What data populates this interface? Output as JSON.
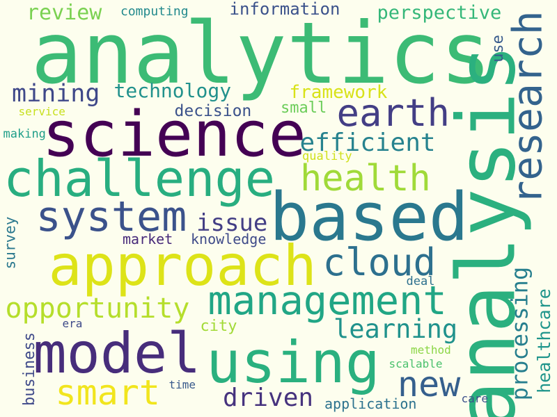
{
  "background": "#fdfeee",
  "words": [
    {
      "text": "analytics",
      "color": "#3cbb75",
      "rotation": 0
    },
    {
      "text": "analysis",
      "color": "#2bb07f",
      "rotation": -90
    },
    {
      "text": "based",
      "color": "#2a788e",
      "rotation": 0
    },
    {
      "text": "science",
      "color": "#440154",
      "rotation": 0
    },
    {
      "text": "challenge",
      "color": "#28ae80",
      "rotation": 0
    },
    {
      "text": "approach",
      "color": "#dde318",
      "rotation": 0
    },
    {
      "text": "using",
      "color": "#2ab07f",
      "rotation": 0
    },
    {
      "text": "model",
      "color": "#472d7b",
      "rotation": 0
    },
    {
      "text": "management",
      "color": "#21a685",
      "rotation": 0
    },
    {
      "text": "research",
      "color": "#33638d",
      "rotation": -90
    },
    {
      "text": "system",
      "color": "#3b528b",
      "rotation": 0
    },
    {
      "text": "earth",
      "color": "#433e85",
      "rotation": 0
    },
    {
      "text": "health",
      "color": "#a0da39",
      "rotation": 0
    },
    {
      "text": "cloud",
      "color": "#2d708e",
      "rotation": 0
    },
    {
      "text": "smart",
      "color": "#f1e51d",
      "rotation": 0
    },
    {
      "text": "new",
      "color": "#355f8d",
      "rotation": 0
    },
    {
      "text": "opportunity",
      "color": "#b5de2b",
      "rotation": 0
    },
    {
      "text": "learning",
      "color": "#20928c",
      "rotation": 0
    },
    {
      "text": "driven",
      "color": "#46337e",
      "rotation": 0
    },
    {
      "text": "mining",
      "color": "#3f4889",
      "rotation": 0
    },
    {
      "text": "efficient",
      "color": "#26828e",
      "rotation": 0
    },
    {
      "text": "issue",
      "color": "#433e85",
      "rotation": 0
    },
    {
      "text": "processing",
      "color": "#277f8e",
      "rotation": -90
    },
    {
      "text": "healthcare",
      "color": "#1f958b",
      "rotation": -90
    },
    {
      "text": "technology",
      "color": "#21918c",
      "rotation": 0
    },
    {
      "text": "review",
      "color": "#7ad151",
      "rotation": 0
    },
    {
      "text": "perspective",
      "color": "#35b779",
      "rotation": 0
    },
    {
      "text": "information",
      "color": "#3b528b",
      "rotation": 0
    },
    {
      "text": "framework",
      "color": "#d8e219",
      "rotation": 0
    },
    {
      "text": "decision",
      "color": "#3b528b",
      "rotation": 0
    },
    {
      "text": "knowledge",
      "color": "#3e4a89",
      "rotation": 0
    },
    {
      "text": "market",
      "color": "#472a7a",
      "rotation": 0
    },
    {
      "text": "survey",
      "color": "#2a788e",
      "rotation": -90
    },
    {
      "text": "business",
      "color": "#3e4989",
      "rotation": -90
    },
    {
      "text": "application",
      "color": "#2c728e",
      "rotation": 0
    },
    {
      "text": "city",
      "color": "#a2da37",
      "rotation": 0
    },
    {
      "text": "small",
      "color": "#6ccd5a",
      "rotation": 0
    },
    {
      "text": "use",
      "color": "#375a8c",
      "rotation": -90
    },
    {
      "text": "computing",
      "color": "#238a8d",
      "rotation": 0
    },
    {
      "text": "quality",
      "color": "#d0e11c",
      "rotation": 0
    },
    {
      "text": "service",
      "color": "#c8e020",
      "rotation": 0
    },
    {
      "text": "making",
      "color": "#1f9e89",
      "rotation": 0
    },
    {
      "text": "deal",
      "color": "#2d708e",
      "rotation": 0
    },
    {
      "text": "era",
      "color": "#3e4a89",
      "rotation": 0
    },
    {
      "text": "time",
      "color": "#38598c",
      "rotation": 0
    },
    {
      "text": "method",
      "color": "#8bd646",
      "rotation": 0
    },
    {
      "text": "scalable",
      "color": "#4ac16d",
      "rotation": 0
    },
    {
      "text": "care",
      "color": "#3c508b",
      "rotation": 0
    }
  ]
}
